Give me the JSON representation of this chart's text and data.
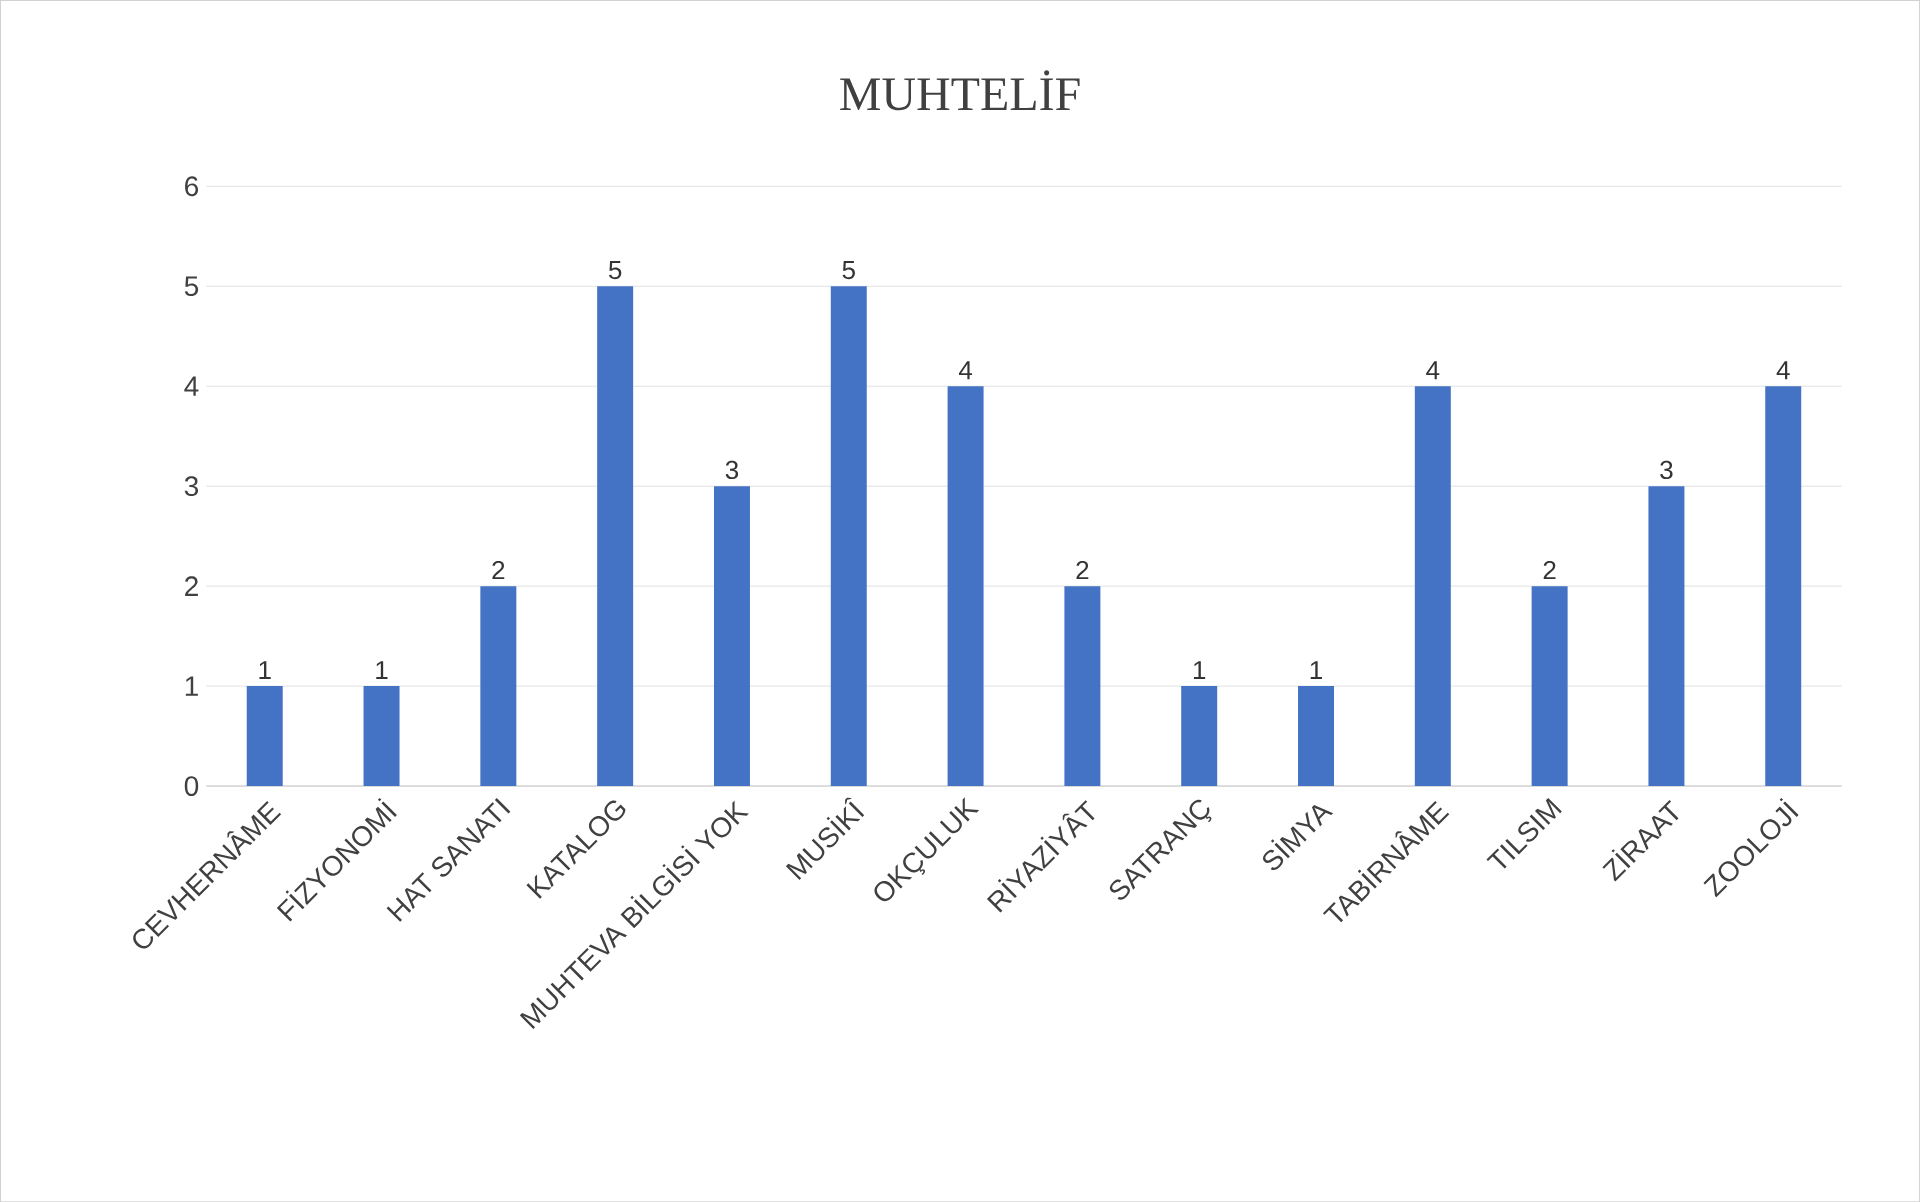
{
  "chart_data": {
    "type": "bar",
    "title": "MUHTELİF",
    "categories": [
      "CEVHERNÂME",
      "FİZYONOMİ",
      "HAT SANATI",
      "KATALOG",
      "MUHTEVA BİLGİSİ YOK",
      "MUSİKÎ",
      "OKÇULUK",
      "RİYAZİYÂT",
      "SATRANÇ",
      "SİMYA",
      "TABİRNÂME",
      "TILSIM",
      "ZİRAAT",
      "ZOOLOJİ"
    ],
    "values": [
      1,
      1,
      2,
      5,
      3,
      5,
      4,
      2,
      1,
      1,
      4,
      2,
      3,
      4
    ],
    "color": "#4472c4",
    "ylim": [
      0,
      6
    ],
    "yticks": [
      0,
      1,
      2,
      3,
      4,
      5,
      6
    ],
    "grid": "y",
    "data_labels": true
  }
}
